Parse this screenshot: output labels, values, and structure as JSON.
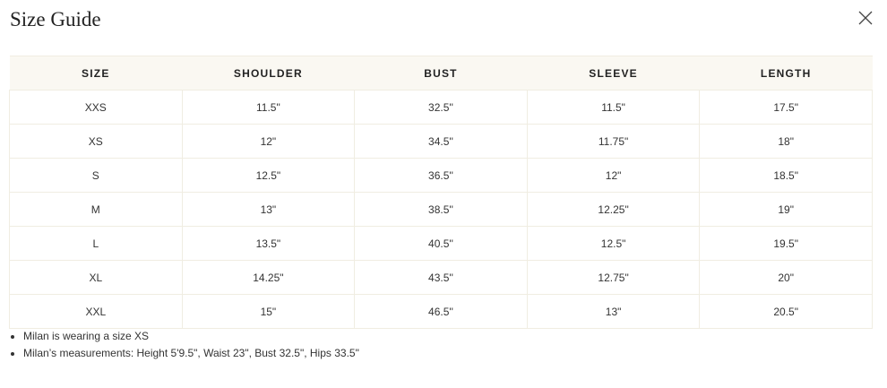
{
  "title": "Size Guide",
  "headers": [
    "SIZE",
    "SHOULDER",
    "BUST",
    "SLEEVE",
    "LENGTH"
  ],
  "rows": [
    [
      "XXS",
      "11.5\"",
      "32.5''",
      "11.5\"",
      "17.5\""
    ],
    [
      "XS",
      "12\"",
      "34.5''",
      "11.75\"",
      "18\""
    ],
    [
      "S",
      "12.5\"",
      "36.5''",
      "12\"",
      "18.5\""
    ],
    [
      "M",
      "13\"",
      "38.5''",
      "12.25\"",
      "19\""
    ],
    [
      "L",
      "13.5\"",
      "40.5''",
      "12.5\"",
      "19.5\""
    ],
    [
      "XL",
      "14.25\"",
      "43.5''",
      "12.75\"",
      "20\""
    ],
    [
      "XXL",
      "15\"",
      "46.5''",
      "13\"",
      "20.5\""
    ]
  ],
  "notes": [
    "Milan is wearing a size XS",
    "Milan’s measurements: Height 5'9.5\", Waist 23\", Bust 32.5\", Hips 33.5\""
  ]
}
